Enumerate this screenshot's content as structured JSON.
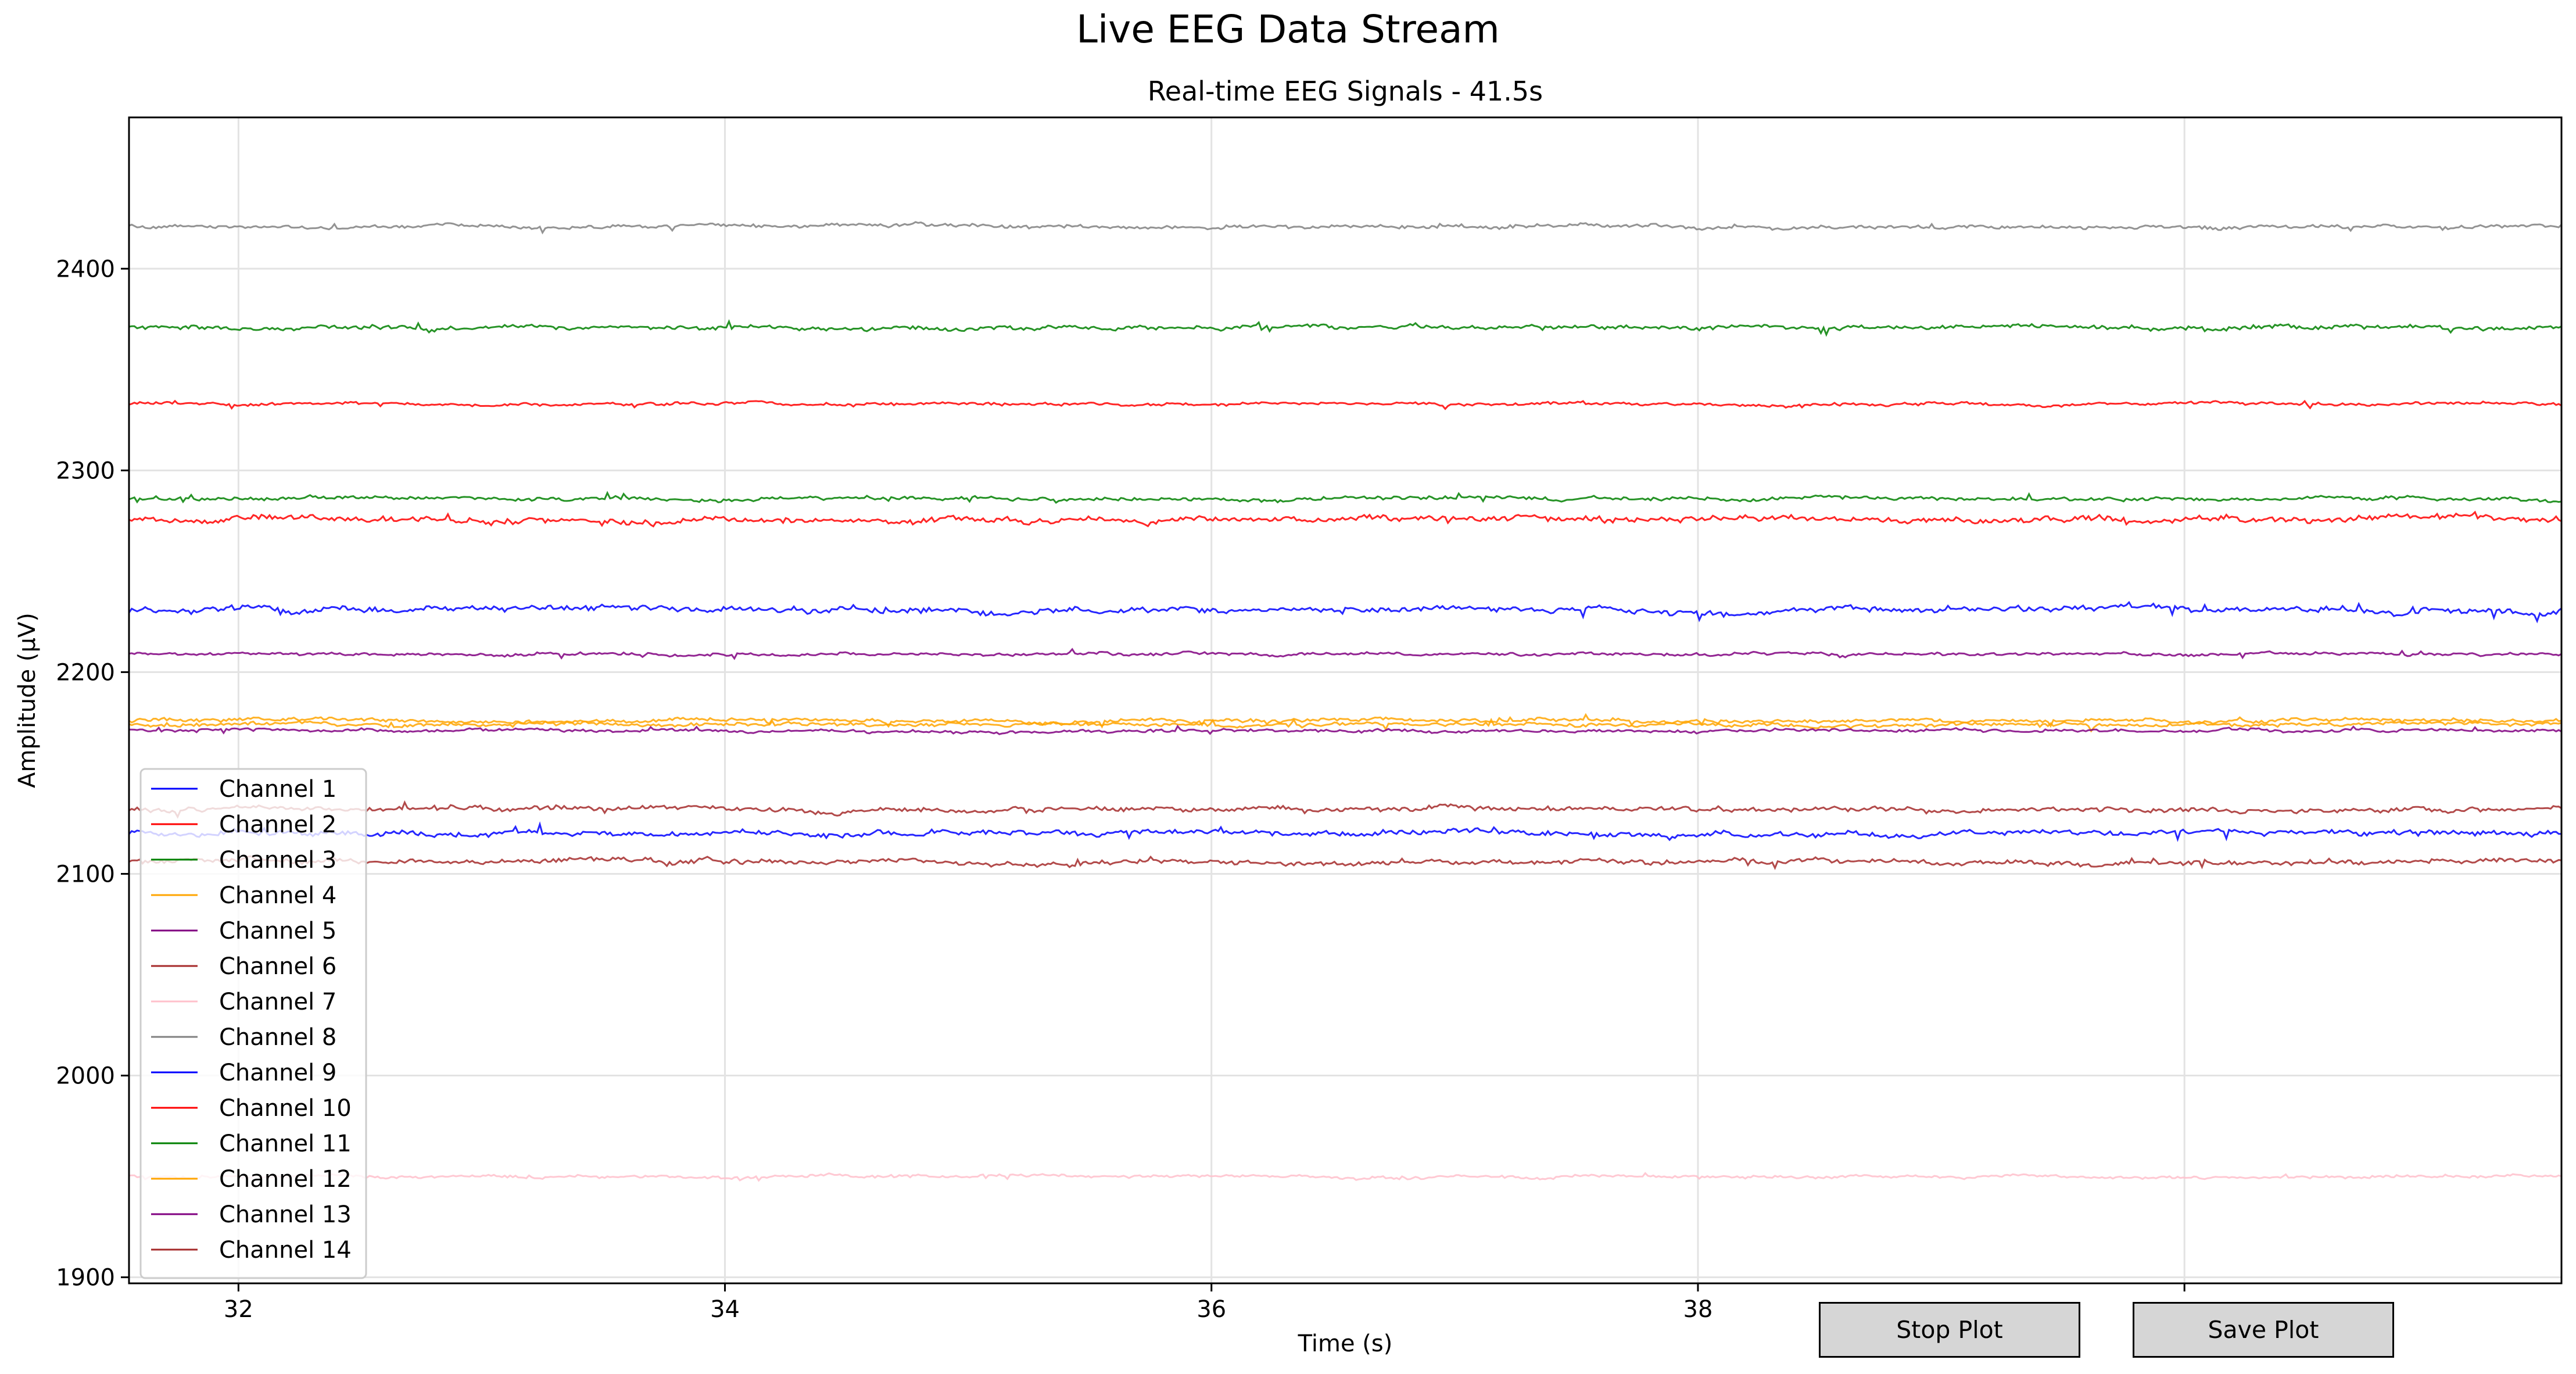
{
  "window": {
    "suptitle": "Live EEG Data Stream"
  },
  "buttons": {
    "stop_label": "Stop Plot",
    "save_label": "Save Plot"
  },
  "chart_data": {
    "type": "line",
    "title": "Real-time EEG Signals - 41.5s",
    "xlabel": "Time (s)",
    "ylabel": "Amplitude (µV)",
    "xlim": [
      31.55,
      41.55
    ],
    "ylim": [
      1897,
      2475
    ],
    "xticks": [
      32,
      34,
      36,
      38,
      40
    ],
    "xtick_labels": [
      "32",
      "34",
      "36",
      "38",
      ""
    ],
    "yticks": [
      1900,
      2000,
      2100,
      2200,
      2300,
      2400
    ],
    "ytick_labels": [
      "1900",
      "2000",
      "2100",
      "2200",
      "2300",
      "2400"
    ],
    "grid": true,
    "legend": "lower-left",
    "series": [
      {
        "name": "Channel 1",
        "color": "#0000ff",
        "baseline": 2231,
        "noise": 2.0
      },
      {
        "name": "Channel 2",
        "color": "#ff0000",
        "baseline": 2276,
        "noise": 2.0
      },
      {
        "name": "Channel 3",
        "color": "#008000",
        "baseline": 2286,
        "noise": 1.2
      },
      {
        "name": "Channel 4",
        "color": "#ffa500",
        "baseline": 2176,
        "noise": 1.2
      },
      {
        "name": "Channel 5",
        "color": "#800080",
        "baseline": 2209,
        "noise": 1.0
      },
      {
        "name": "Channel 6",
        "color": "#a52a2a",
        "baseline": 2106,
        "noise": 1.6
      },
      {
        "name": "Channel 7",
        "color": "#ffc0cb",
        "baseline": 1950,
        "noise": 1.0
      },
      {
        "name": "Channel 8",
        "color": "#808080",
        "baseline": 2421,
        "noise": 1.2
      },
      {
        "name": "Channel 9",
        "color": "#0000ff",
        "baseline": 2120,
        "noise": 1.8
      },
      {
        "name": "Channel 10",
        "color": "#ff0000",
        "baseline": 2333,
        "noise": 1.0
      },
      {
        "name": "Channel 11",
        "color": "#008000",
        "baseline": 2371,
        "noise": 1.4
      },
      {
        "name": "Channel 12",
        "color": "#ffa500",
        "baseline": 2174,
        "noise": 1.2
      },
      {
        "name": "Channel 13",
        "color": "#800080",
        "baseline": 2171,
        "noise": 1.0
      },
      {
        "name": "Channel 14",
        "color": "#a52a2a",
        "baseline": 2132,
        "noise": 1.6
      }
    ]
  }
}
